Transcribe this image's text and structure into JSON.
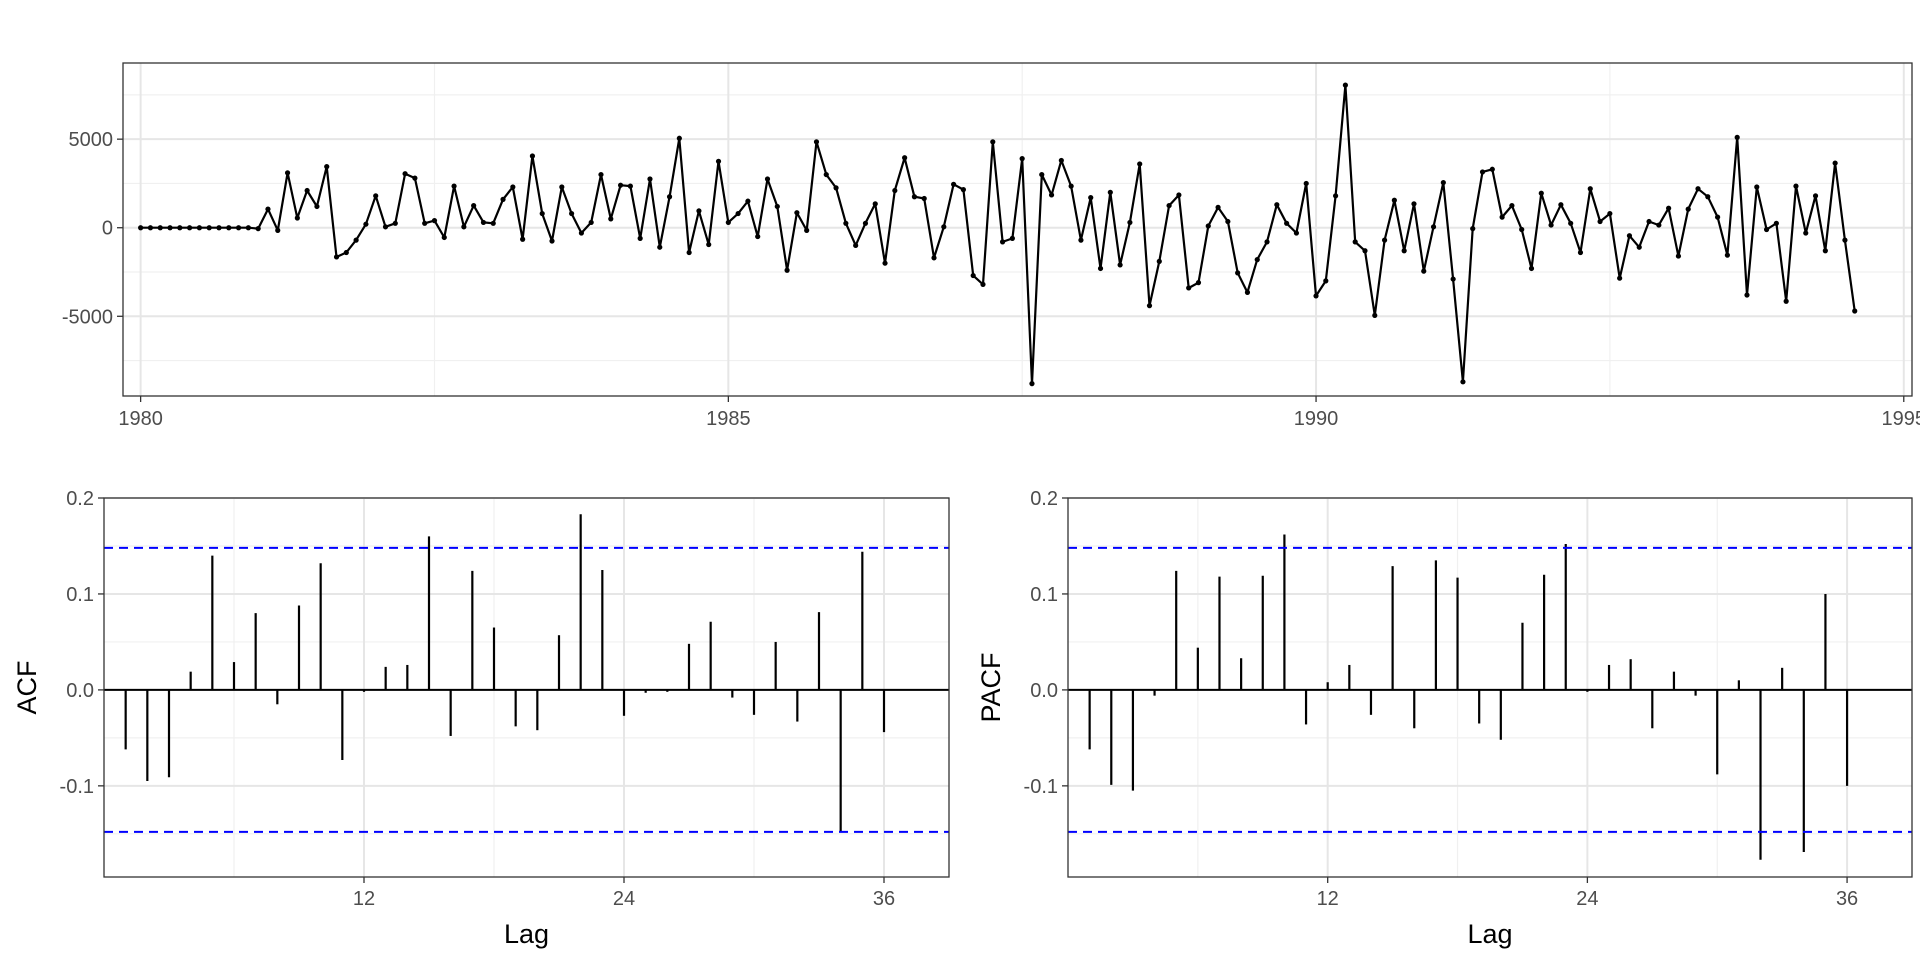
{
  "chart_data": [
    {
      "type": "line",
      "xlabel": "",
      "ylabel": "",
      "x_start": 1980.0,
      "x_step": 0.08333,
      "xlim": [
        1979.85,
        1995.07
      ],
      "ylim": [
        -9500,
        9300
      ],
      "x_ticks": [
        1980,
        1985,
        1990,
        1995
      ],
      "x_tick_labels": [
        "1980",
        "1985",
        "1990",
        "1995"
      ],
      "y_ticks": [
        -5000,
        0,
        5000
      ],
      "y_tick_labels": [
        "-5000",
        "0",
        "5000"
      ],
      "grid": true,
      "line_color": "#000000",
      "values": [
        0,
        0,
        0,
        0,
        0,
        0,
        0,
        0,
        0,
        0,
        0,
        0,
        -50,
        1050,
        -150,
        3100,
        550,
        2100,
        1200,
        3450,
        -1650,
        -1400,
        -700,
        200,
        1800,
        50,
        250,
        3050,
        2800,
        250,
        400,
        -550,
        2350,
        50,
        1250,
        300,
        250,
        1600,
        2300,
        -650,
        4050,
        800,
        -750,
        2300,
        800,
        -300,
        300,
        3000,
        500,
        2400,
        2350,
        -600,
        2750,
        -1100,
        1750,
        5050,
        -1400,
        950,
        -950,
        3750,
        300,
        800,
        1500,
        -500,
        2750,
        1200,
        -2400,
        850,
        -150,
        4850,
        3000,
        2250,
        250,
        -1000,
        250,
        1350,
        -2000,
        2100,
        3950,
        1750,
        1650,
        -1700,
        50,
        2450,
        2150,
        -2700,
        -3200,
        4850,
        -800,
        -600,
        3900,
        -8800,
        3000,
        1850,
        3800,
        2350,
        -700,
        1700,
        -2300,
        2000,
        -2100,
        300,
        3600,
        -4400,
        -1900,
        1250,
        1850,
        -3400,
        -3100,
        100,
        1150,
        350,
        -2550,
        -3650,
        -1800,
        -800,
        1300,
        250,
        -300,
        2500,
        -3850,
        -3000,
        1800,
        8050,
        -800,
        -1300,
        -4950,
        -700,
        1550,
        -1300,
        1350,
        -2450,
        50,
        2550,
        -2900,
        -8700,
        -50,
        3150,
        3300,
        600,
        1250,
        -100,
        -2300,
        1950,
        150,
        1300,
        250,
        -1400,
        2200,
        350,
        800,
        -2850,
        -450,
        -1100,
        350,
        150,
        1100,
        -1600,
        1050,
        2200,
        1750,
        600,
        -1550,
        5100,
        -3800,
        2300,
        -100,
        250,
        -4150,
        2350,
        -300,
        1800,
        -1300,
        3650,
        -700,
        -4700
      ]
    },
    {
      "type": "bar",
      "ylabel": "ACF",
      "xlabel": "Lag",
      "xlim": [
        0,
        39
      ],
      "ylim": [
        -0.195,
        0.2
      ],
      "x_ticks": [
        12,
        24,
        36
      ],
      "x_tick_labels": [
        "12",
        "24",
        "36"
      ],
      "y_ticks": [
        -0.1,
        0.0,
        0.1,
        0.2
      ],
      "y_tick_labels": [
        "-0.1",
        "0.0",
        "0.1",
        "0.2"
      ],
      "ci": 0.148,
      "ci_color": "#0000ff",
      "grid": true,
      "lags": [
        1,
        2,
        3,
        4,
        5,
        6,
        7,
        8,
        9,
        10,
        11,
        12,
        13,
        14,
        15,
        16,
        17,
        18,
        19,
        20,
        21,
        22,
        23,
        24,
        25,
        26,
        27,
        28,
        29,
        30,
        31,
        32,
        33,
        34,
        35,
        36
      ],
      "values": [
        -0.062,
        -0.095,
        -0.091,
        0.019,
        0.14,
        0.029,
        0.08,
        -0.015,
        0.088,
        0.132,
        -0.073,
        -0.002,
        0.024,
        0.026,
        0.16,
        -0.048,
        0.124,
        0.065,
        -0.038,
        -0.042,
        0.057,
        0.183,
        0.125,
        -0.027,
        -0.003,
        -0.002,
        0.048,
        0.071,
        -0.008,
        -0.026,
        0.05,
        -0.033,
        0.081,
        -0.148,
        0.144,
        -0.044
      ]
    },
    {
      "type": "bar",
      "ylabel": "PACF",
      "xlabel": "Lag",
      "xlim": [
        0,
        39
      ],
      "ylim": [
        -0.195,
        0.2
      ],
      "x_ticks": [
        12,
        24,
        36
      ],
      "x_tick_labels": [
        "12",
        "24",
        "36"
      ],
      "y_ticks": [
        -0.1,
        0.0,
        0.1,
        0.2
      ],
      "y_tick_labels": [
        "-0.1",
        "0.0",
        "0.1",
        "0.2"
      ],
      "ci": 0.148,
      "ci_color": "#0000ff",
      "grid": true,
      "lags": [
        1,
        2,
        3,
        4,
        5,
        6,
        7,
        8,
        9,
        10,
        11,
        12,
        13,
        14,
        15,
        16,
        17,
        18,
        19,
        20,
        21,
        22,
        23,
        24,
        25,
        26,
        27,
        28,
        29,
        30,
        31,
        32,
        33,
        34,
        35,
        36
      ],
      "values": [
        -0.062,
        -0.099,
        -0.105,
        -0.006,
        0.124,
        0.044,
        0.118,
        0.033,
        0.119,
        0.162,
        -0.036,
        0.008,
        0.026,
        -0.026,
        0.129,
        -0.04,
        0.135,
        0.117,
        -0.035,
        -0.052,
        0.07,
        0.12,
        0.152,
        -0.002,
        0.026,
        0.032,
        -0.04,
        0.019,
        -0.006,
        -0.088,
        0.01,
        -0.177,
        0.023,
        -0.169,
        0.1,
        -0.1
      ]
    }
  ]
}
